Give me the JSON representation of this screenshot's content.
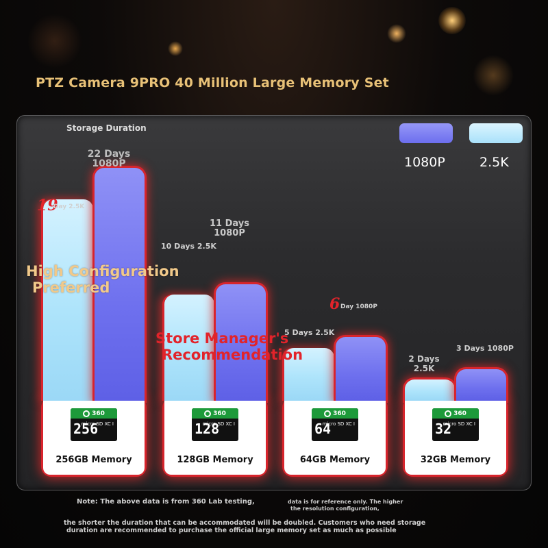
{
  "title": "PTZ Camera 9PRO 40 Million Large Memory Set",
  "colors": {
    "res_1080p": "#7274f0",
    "res_2_5k": "#aee4fb",
    "accent_red": "#e3242b",
    "title_gold": "#e8c177"
  },
  "chart_data": {
    "type": "bar",
    "title": "Storage Duration",
    "categories": [
      "256GB Memory",
      "128GB Memory",
      "64GB Memory",
      "32GB Memory"
    ],
    "series": [
      {
        "name": "2.5K",
        "values": [
          19,
          10,
          5,
          2
        ],
        "unit": "Days"
      },
      {
        "name": "1080P",
        "values": [
          22,
          11,
          6,
          3
        ],
        "unit": "Days"
      }
    ],
    "legend": {
      "position": "top-right",
      "items": [
        "1080P",
        "2.5K"
      ]
    },
    "ylim": [
      0,
      22
    ],
    "grid": false
  },
  "labels": {
    "storage_duration": "Storage Duration",
    "legend_1080p": "1080P",
    "legend_2_5k": "2.5K",
    "g256_1080_line1": "22 Days",
    "g256_1080_line2": "1080P",
    "g256_25k_num": "19",
    "g256_25k_text": "Day 2.5K",
    "g128_1080_line1": "11 Days",
    "g128_1080_line2": "1080P",
    "g128_25k": "10 Days 2.5K",
    "g64_1080_num": "6",
    "g64_1080_text": "Day 1080P",
    "g64_25k": "5 Days 2.5K",
    "g32_25k_line1": "2 Days",
    "g32_25k_line2": "2.5K",
    "g32_1080": "3 Days 1080P"
  },
  "cards": [
    {
      "label": "256GB Memory",
      "chip": "256",
      "brand": "360"
    },
    {
      "label": "128GB Memory",
      "chip": "128",
      "brand": "360"
    },
    {
      "label": "64GB Memory",
      "chip": "64",
      "brand": "360"
    },
    {
      "label": "32GB Memory",
      "chip": "32",
      "brand": "360"
    }
  ],
  "chip_micro_text": "micro SD XC I",
  "promos": {
    "high_config_line1": "High Configuration",
    "high_config_line2": "Preferred",
    "store_manager_line1": "Store Manager's",
    "store_manager_line2": "Recommendation"
  },
  "notes": {
    "line1a": "Note: The above data is from 360 Lab testing,",
    "line1b": "data is for reference only. The higher",
    "line1c": "the resolution configuration,",
    "line2": "the shorter the duration that can be accommodated will be doubled. Customers who need storage",
    "line3": "duration are recommended to purchase the official large memory set as much as possible"
  }
}
